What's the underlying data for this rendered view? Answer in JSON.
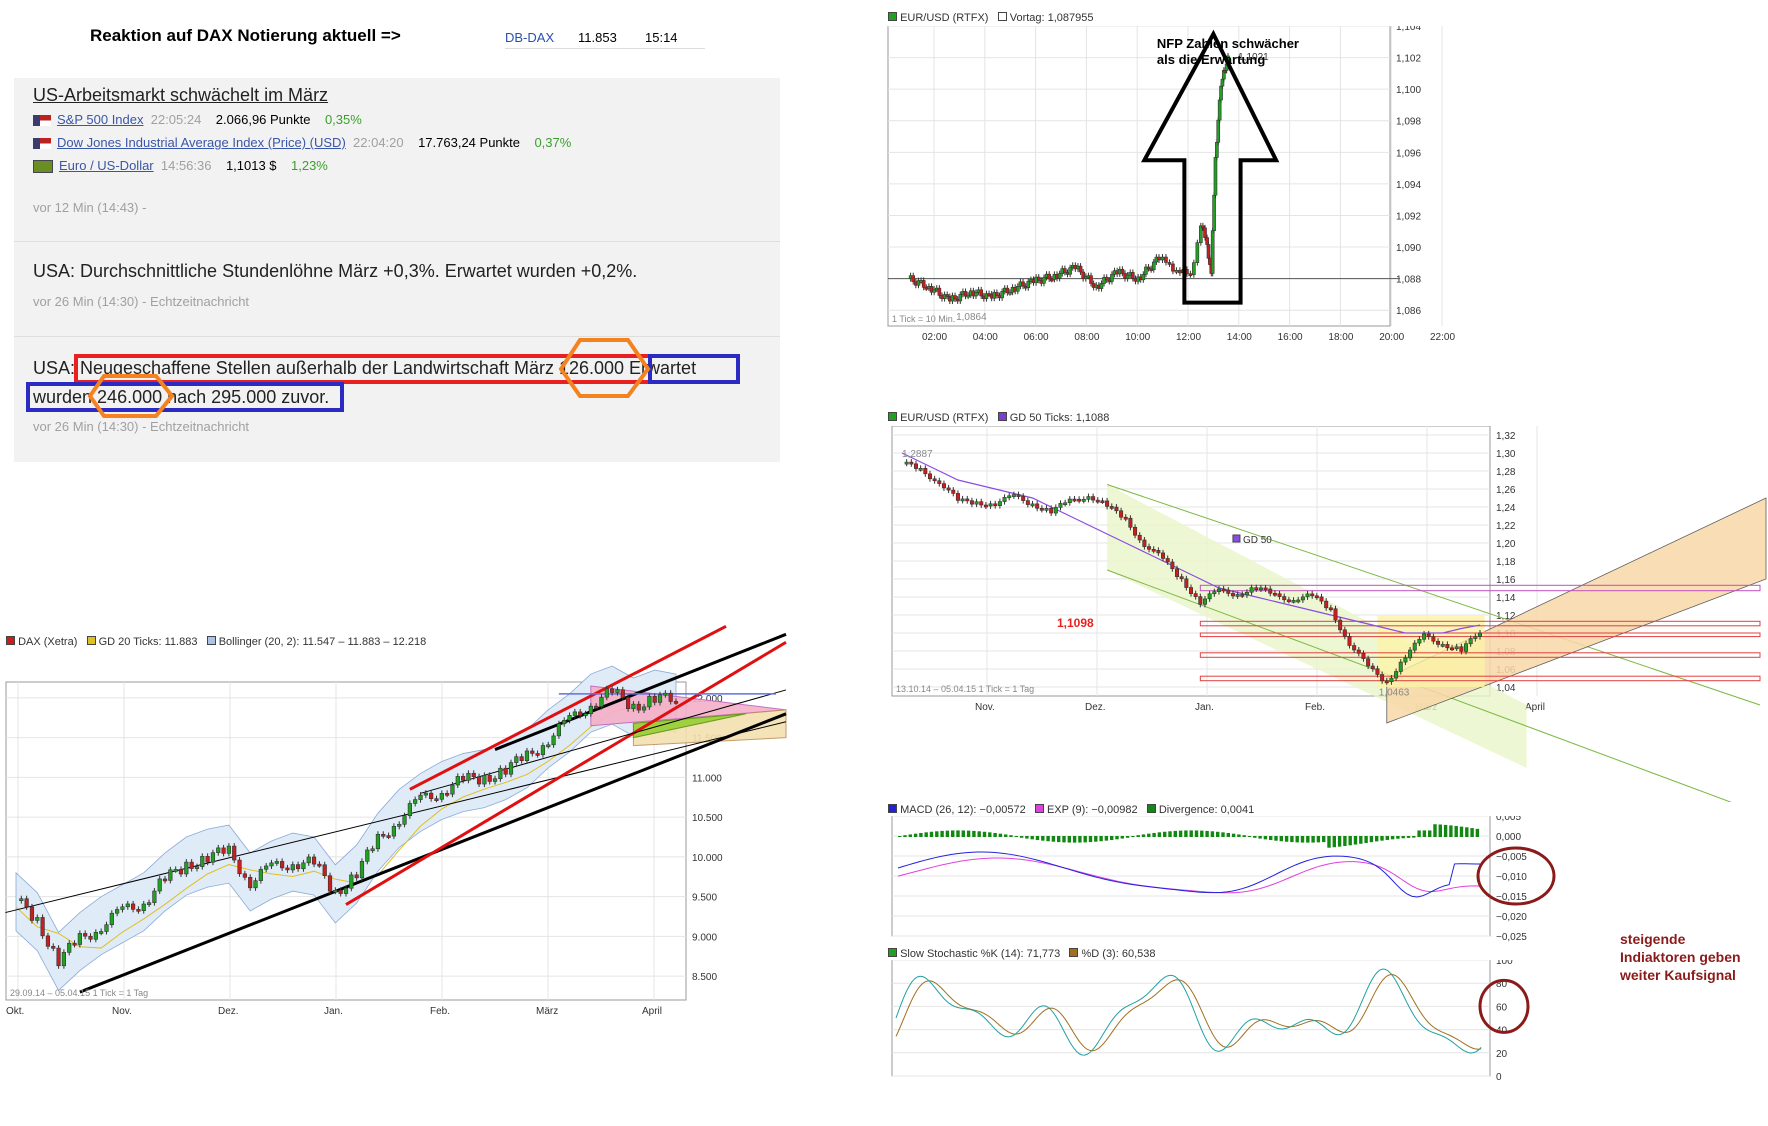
{
  "dax_header": {
    "title": "Reaktion auf DAX Notierung aktuell =>",
    "symbol": "DB-DAX",
    "value": "11.853",
    "time": "15:14"
  },
  "news": {
    "item1": {
      "title": "US-Arbeitsmarkt schwächelt im März",
      "quotes": [
        {
          "name": "S&P 500 Index",
          "time": "22:05:24",
          "value": "2.066,96 Punkte",
          "change": "0,35%",
          "flag": "us-flag-icon"
        },
        {
          "name": "Dow Jones Industrial Average Index (Price) (USD)",
          "time": "22:04:20",
          "value": "17.763,24 Punkte",
          "change": "0,37%",
          "flag": "us-flag-icon"
        },
        {
          "name": "Euro / US-Dollar",
          "time": "14:56:36",
          "value": "1,1013 $",
          "change": "1,23%",
          "flag": "eu-flag-icon"
        }
      ],
      "meta": "vor 12 Min (14:43) -"
    },
    "item2": {
      "headline": "USA: Durchschnittliche Stundenlöhne März +0,3%. Erwartet wurden +0,2%.",
      "meta": "vor 26 Min (14:30) - Echtzeitnachricht"
    },
    "item3": {
      "p1": "USA: ",
      "p2": "Neugeschaffene Stellen außerhalb der Landwirtschaft März ",
      "p3": "126.000",
      "p4": " Erwartet",
      "p5": "wurden ",
      "p6": "246.000",
      "p7": " nach 295.000 zuvor.",
      "meta": "vor 26 Min (14:30) - Echtzeitnachricht"
    }
  },
  "chart_data": [
    {
      "type": "line",
      "title": "EUR/USD (RTFX)",
      "legend": [
        "EUR/USD (RTFX)",
        "Vortag: 1,087955"
      ],
      "x_ticks": [
        "02:00",
        "04:00",
        "06:00",
        "08:00",
        "10:00",
        "12:00",
        "14:00",
        "16:00",
        "18:00",
        "20:00",
        "22:00"
      ],
      "y_ticks": [
        "1,104",
        "1,102",
        "1,100",
        "1,098",
        "1,096",
        "1,094",
        "1,092",
        "1,090",
        "1,088",
        "1,086"
      ],
      "ylim": [
        1.085,
        1.104
      ],
      "x": [
        0,
        1,
        2,
        3,
        4,
        5,
        6,
        7,
        8,
        9,
        10,
        11,
        12,
        12.5,
        13,
        13.5,
        14,
        14.3,
        14.5,
        14.7,
        14.9,
        15.1,
        15.3
      ],
      "y": [
        1.088,
        1.0875,
        1.0866,
        1.0872,
        1.0868,
        1.0874,
        1.0878,
        1.0882,
        1.0887,
        1.0875,
        1.0884,
        1.088,
        1.0893,
        1.0888,
        1.0885,
        1.0881,
        1.0915,
        1.09,
        1.0885,
        1.0955,
        1.0995,
        1.101,
        1.1021
      ],
      "annotations": [
        "NFP Zahlen schwächer",
        "als die Erwartung",
        "1,0864",
        "1,1021",
        "1 Tick = 10 Min."
      ],
      "reference_line": 1.088
    },
    {
      "type": "line",
      "title": "EUR/USD (RTFX)",
      "legend": [
        "EUR/USD (RTFX)",
        "GD 50 Ticks: 1,1088"
      ],
      "x_ticks": [
        "Nov.",
        "Dez.",
        "Jan.",
        "Feb.",
        "März",
        "April"
      ],
      "y_ticks": [
        "1,32",
        "1,30",
        "1,28",
        "1,26",
        "1,24",
        "1,22",
        "1,20",
        "1,18",
        "1,16",
        "1,14",
        "1,12",
        "1,10",
        "1,08",
        "1,06",
        "1,04"
      ],
      "ylim": [
        1.03,
        1.33
      ],
      "x": [
        0,
        4,
        8,
        12,
        16,
        20,
        24,
        28,
        32,
        36,
        40,
        44,
        48,
        52,
        56,
        60,
        64,
        68,
        72,
        76,
        80,
        84,
        88,
        92,
        96,
        100,
        104,
        108,
        112,
        116,
        120,
        124
      ],
      "y": [
        1.2887,
        1.28,
        1.27,
        1.245,
        1.245,
        1.245,
        1.25,
        1.245,
        1.235,
        1.245,
        1.255,
        1.24,
        1.225,
        1.2,
        1.18,
        1.16,
        1.135,
        1.145,
        1.145,
        1.15,
        1.14,
        1.14,
        1.14,
        1.125,
        1.09,
        1.06,
        1.0463,
        1.075,
        1.095,
        1.09,
        1.08,
        1.1
      ],
      "gd50": [
        1.3,
        1.29,
        1.28,
        1.27,
        1.265,
        1.26,
        1.255,
        1.25,
        1.24,
        1.23,
        1.22,
        1.21,
        1.2,
        1.19,
        1.18,
        1.17,
        1.16,
        1.15,
        1.145,
        1.14,
        1.135,
        1.13,
        1.125,
        1.12,
        1.115,
        1.11,
        1.105,
        1.1,
        1.1,
        1.1,
        1.105,
        1.1088
      ],
      "annotations": [
        "1,2887",
        "GD 50",
        "1,1098",
        "1,0463",
        "13.10.14 – 05.04.15   1 Tick = 1 Tag"
      ]
    },
    {
      "type": "bar",
      "title": "MACD (26, 12): −0,00572",
      "legend": [
        "MACD (26, 12): −0,00572",
        "EXP (9): −0,00982",
        "Divergence: 0,0041"
      ],
      "y_ticks": [
        "0,005",
        "0,000",
        "−0,005",
        "−0,010",
        "−0,015",
        "−0,020",
        "−0,025"
      ],
      "ylim": [
        -0.025,
        0.005
      ]
    },
    {
      "type": "line",
      "title": "Slow Stochastic %K (14): 71,773",
      "legend": [
        "Slow Stochastic %K (14): 71,773",
        "%D (3): 60,538"
      ],
      "y_ticks": [
        "100",
        "80",
        "60",
        "40",
        "20",
        "0"
      ],
      "ylim": [
        0,
        100
      ]
    },
    {
      "type": "line",
      "title": "DAX (Xetra)",
      "legend": [
        "DAX (Xetra)",
        "GD 20 Ticks: 11.883",
        "Bollinger (20, 2): 11.547 – 11.883 – 12.218"
      ],
      "x_ticks": [
        "Okt.",
        "Nov.",
        "Dez.",
        "Jan.",
        "Feb.",
        "März",
        "April"
      ],
      "y_ticks": [
        "12.000",
        "11.500",
        "11.000",
        "10.500",
        "10.000",
        "9.500",
        "9.000",
        "8.500"
      ],
      "ylim": [
        8200,
        12200
      ],
      "x": [
        0,
        4,
        8,
        12,
        16,
        20,
        24,
        28,
        32,
        36,
        40,
        44,
        48,
        52,
        56,
        60,
        64,
        68,
        72,
        76,
        80,
        84,
        88,
        92,
        96,
        100,
        104,
        108,
        112,
        116,
        120,
        124
      ],
      "y": [
        9450,
        9200,
        8700,
        8950,
        9150,
        9300,
        9450,
        9700,
        9900,
        10000,
        10050,
        9700,
        9850,
        9950,
        9900,
        9550,
        9800,
        10200,
        10500,
        10700,
        10850,
        10950,
        11000,
        11100,
        11250,
        11500,
        11700,
        11950,
        12050,
        11900,
        12000,
        11950
      ],
      "annotations": [
        "29.09.14 – 05.04.15   1 Tick = 1 Tag"
      ]
    }
  ],
  "indicator_note": {
    "line1": "steigende",
    "line2": "Indiaktoren geben",
    "line3": "weiter Kaufsignal"
  },
  "colors": {
    "up": "#22a022",
    "down": "#c81e1e",
    "macd": "#2222dd",
    "exp": "#e040e0",
    "div": "#118811",
    "annot_red": "#e82020",
    "annot_blue": "#2b2bc4",
    "annot_orange": "#f58220",
    "circle": "#8b1a1a"
  }
}
